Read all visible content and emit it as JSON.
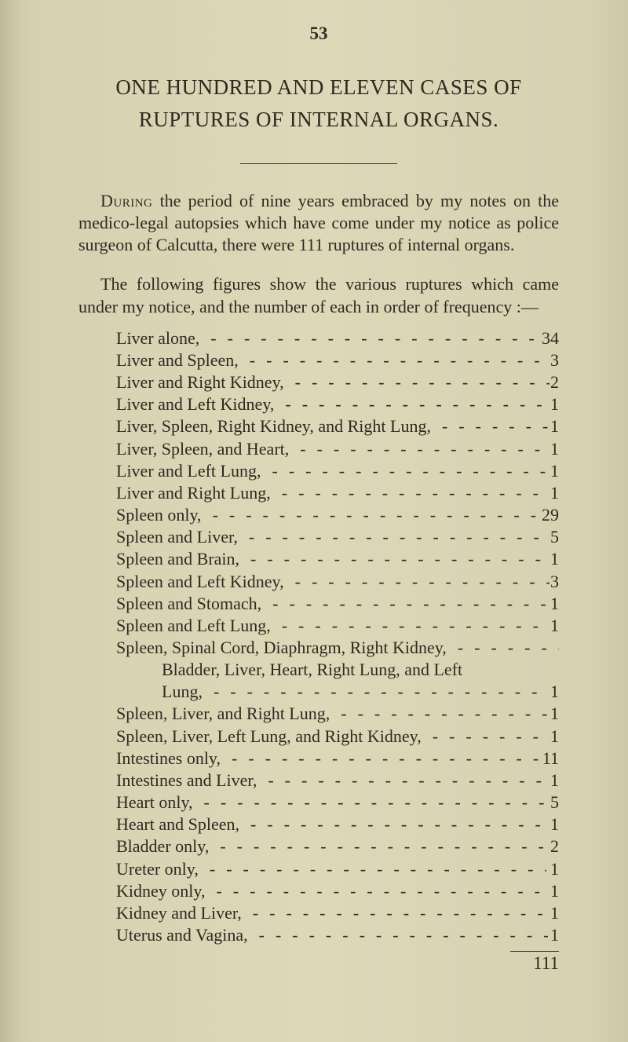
{
  "page_number": "53",
  "title_line1": "ONE HUNDRED AND ELEVEN CASES OF",
  "title_line2": "RUPTURES OF INTERNAL ORGANS.",
  "paragraph1_html": "<span class=\"sc\">During</span> the period of nine years embraced by my notes on the medico-legal autopsies which have come under my notice as police surgeon of Calcutta, there were 111 ruptures of internal organs.",
  "paragraph2": "The following figures show the various ruptures which came under my notice, and the number of each in order of frequency :—",
  "items": [
    {
      "label": "Liver alone,",
      "value": "34"
    },
    {
      "label": "Liver and Spleen,",
      "value": "3"
    },
    {
      "label": "Liver and Right Kidney,",
      "value": "2"
    },
    {
      "label": "Liver and Left Kidney,",
      "value": "1"
    },
    {
      "label": "Liver, Spleen, Right Kidney, and Right Lung,",
      "value": "1"
    },
    {
      "label": "Liver, Spleen, and Heart,",
      "value": "1"
    },
    {
      "label": "Liver and Left Lung,",
      "value": "1"
    },
    {
      "label": "Liver and Right Lung,",
      "value": "1"
    },
    {
      "label": "Spleen only,",
      "value": "29"
    },
    {
      "label": "Spleen and Liver,",
      "value": "5"
    },
    {
      "label": "Spleen and Brain,",
      "value": "1"
    },
    {
      "label": "Spleen and Left Kidney,",
      "value": "3"
    },
    {
      "label": "Spleen and Stomach,",
      "value": "1"
    },
    {
      "label": "Spleen and Left Lung,",
      "value": "1"
    },
    {
      "label": "Spleen, Spinal Cord, Diaphragm, Right Kidney,",
      "no_value": true
    },
    {
      "label": "Bladder, Liver, Heart, Right Lung, and Left",
      "no_value": true,
      "indent": true,
      "no_leader": true
    },
    {
      "label": "Lung,",
      "value": "1",
      "indent": true
    },
    {
      "label": "Spleen, Liver, and Right Lung,",
      "value": "1"
    },
    {
      "label": "Spleen, Liver, Left Lung, and Right Kidney,",
      "value": "1"
    },
    {
      "label": "Intestines only,",
      "value": "11"
    },
    {
      "label": "Intestines and Liver,",
      "value": "1"
    },
    {
      "label": "Heart only,",
      "value": "5"
    },
    {
      "label": "Heart and Spleen,",
      "value": "1"
    },
    {
      "label": "Bladder only,",
      "value": "2"
    },
    {
      "label": "Ureter only,",
      "value": "1"
    },
    {
      "label": "Kidney only,",
      "value": "1"
    },
    {
      "label": "Kidney and Liver,",
      "value": "1"
    },
    {
      "label": "Uterus and Vagina,",
      "value": "1"
    }
  ],
  "total": "111"
}
